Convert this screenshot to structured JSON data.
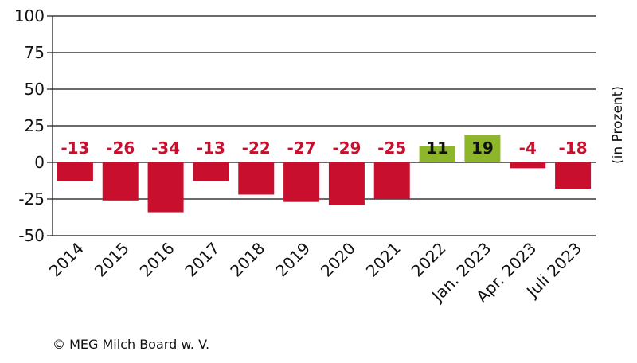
{
  "chart_data": {
    "type": "bar",
    "categories": [
      "2014",
      "2015",
      "2016",
      "2017",
      "2018",
      "2019",
      "2020",
      "2021",
      "2022",
      "Jan. 2023",
      "Apr. 2023",
      "Juli 2023"
    ],
    "values": [
      -13,
      -26,
      -34,
      -13,
      -22,
      -27,
      -29,
      -25,
      11,
      19,
      -4,
      -18
    ],
    "data_labels": [
      "-13",
      "-26",
      "-34",
      "-13",
      "-22",
      "-27",
      "-29",
      "-25",
      "11",
      "19",
      "-4",
      "-18"
    ],
    "ylabel": "(in Prozent)",
    "ylim": [
      -50,
      100
    ],
    "yticks": [
      100,
      75,
      50,
      25,
      0,
      -25,
      -50
    ],
    "ytick_labels": [
      "100",
      "75",
      "50",
      "25",
      "0",
      "-25",
      "-50"
    ],
    "grid": "horizontal",
    "colors": {
      "negative": "#c8102e",
      "positive": "#8db62a",
      "negative_label": "#c8102e",
      "positive_label": "#111111"
    }
  },
  "footer": {
    "source": "© MEG Milch Board w. V."
  }
}
